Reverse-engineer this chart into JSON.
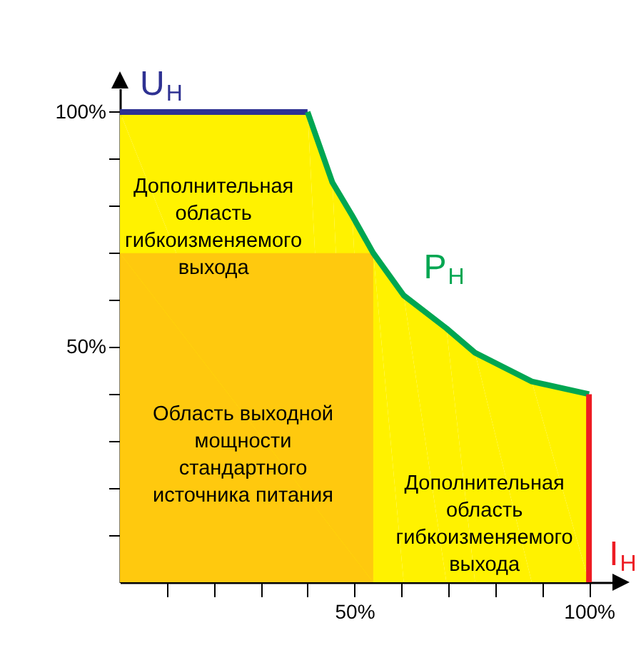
{
  "chart_data": {
    "type": "line",
    "xlim": [
      0,
      105
    ],
    "ylim": [
      0,
      105
    ],
    "xticks": [
      {
        "value": 10,
        "label": null
      },
      {
        "value": 20,
        "label": null
      },
      {
        "value": 30,
        "label": null
      },
      {
        "value": 40,
        "label": null
      },
      {
        "value": 50,
        "label": "50%"
      },
      {
        "value": 60,
        "label": null
      },
      {
        "value": 70,
        "label": null
      },
      {
        "value": 80,
        "label": null
      },
      {
        "value": 90,
        "label": null
      },
      {
        "value": 100,
        "label": "100%"
      }
    ],
    "yticks": [
      {
        "value": 10,
        "label": null
      },
      {
        "value": 20,
        "label": null
      },
      {
        "value": 30,
        "label": null
      },
      {
        "value": 40,
        "label": null
      },
      {
        "value": 50,
        "label": "50%"
      },
      {
        "value": 60,
        "label": null
      },
      {
        "value": 70,
        "label": null
      },
      {
        "value": 80,
        "label": null
      },
      {
        "value": 90,
        "label": null
      },
      {
        "value": 100,
        "label": "100%"
      }
    ],
    "grid": false,
    "legend": false,
    "series": [
      {
        "type": "area",
        "color": "#fff200",
        "x": [
          0,
          40,
          45.3,
          49.5,
          54,
          60.5,
          69.6,
          75.7,
          87.8,
          100
        ],
        "values": [
          100,
          100,
          85,
          78,
          70,
          61,
          54,
          48.8,
          42.7,
          40
        ]
      },
      {
        "type": "area",
        "color": "#ffc90e",
        "x": [
          0,
          54
        ],
        "values": [
          70,
          70
        ]
      },
      {
        "name": "U$_{Н}$",
        "color": "#2e3192",
        "x": [
          0,
          40
        ],
        "values": [
          100,
          100
        ]
      },
      {
        "name": "P$_{Н}$",
        "color": "#00a651",
        "x": [
          40,
          45.3,
          49.5,
          54,
          60.5,
          69.6,
          75.7,
          87.8,
          100
        ],
        "values": [
          100,
          85,
          78,
          70,
          61,
          54,
          48.8,
          42.7,
          40
        ]
      },
      {
        "name": "I$_{Н}$",
        "color": "#ed1c24",
        "x": [
          100,
          100
        ],
        "values": [
          0,
          40
        ]
      }
    ],
    "annotations": [
      "Дополнительная\nобласть\nгибкоизменяемого\nвыхода",
      "Область выходной\nмощности\nстандартного\nисточника питания",
      "Дополнительная\nобласть\nгибкоизменяемого\nвыхода"
    ]
  }
}
